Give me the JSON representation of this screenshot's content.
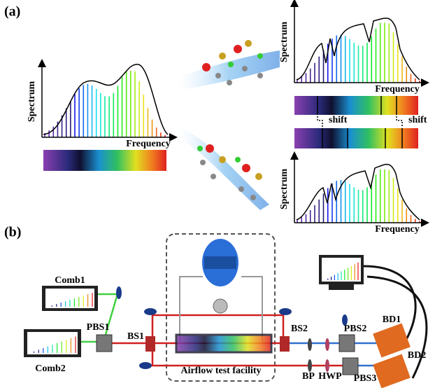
{
  "panel_a": {
    "label": "(a)",
    "plots": [
      {
        "y_label": "Spectrum",
        "x_label": "Frequency"
      },
      {
        "y_label": "Spectrum",
        "x_label": "Frequency"
      },
      {
        "y_label": "Spectrum",
        "x_label": "Frequency"
      }
    ],
    "shift_labels": [
      "shift",
      "shift"
    ]
  },
  "panel_b": {
    "label": "(b)",
    "components": {
      "comb1": "Comb1",
      "comb2": "Comb2",
      "pbs1": "PBS1",
      "bs1": "BS1",
      "bs2": "BS2",
      "facility": "Airflow test facility",
      "bp": "BP",
      "hwp": "HWP",
      "pbs2": "PBS2",
      "pbs3": "PBS3",
      "bd1": "BD1",
      "bd2": "BD2"
    }
  }
}
